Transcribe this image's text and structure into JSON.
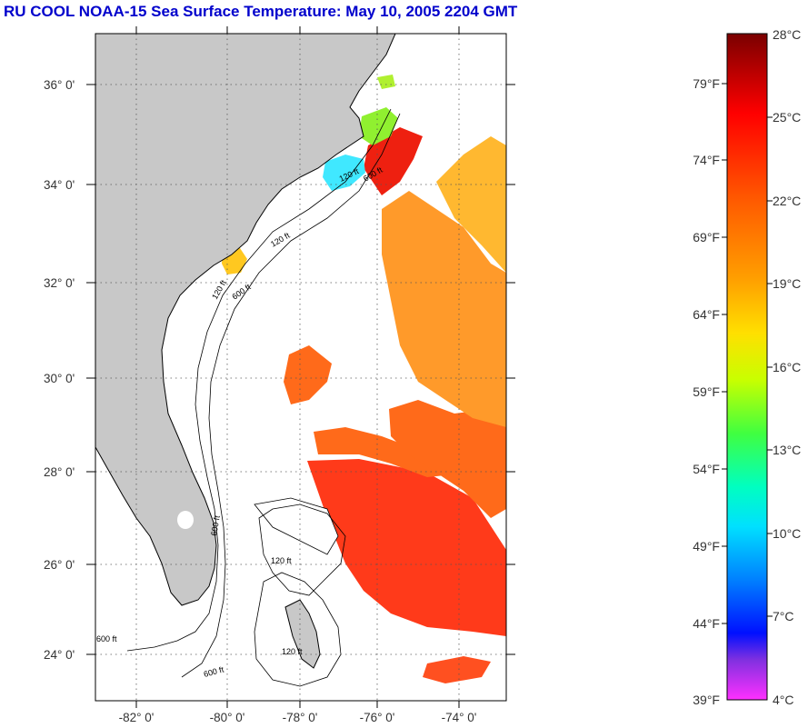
{
  "title": "RU COOL  NOAA-15  Sea Surface Temperature:  May 10, 2005 2204 GMT",
  "lat_labels": [
    "36° 0'",
    "34° 0'",
    "32° 0'",
    "30° 0'",
    "28° 0'",
    "26° 0'",
    "24° 0'"
  ],
  "lon_labels": [
    "-82° 0'",
    "-80° 0'",
    "-78° 0'",
    "-76° 0'",
    "-74° 0'"
  ],
  "colorbar": {
    "celsius": [
      "28°C",
      "25°C",
      "22°C",
      "19°C",
      "16°C",
      "13°C",
      "10°C",
      "7°C",
      "4°C"
    ],
    "fahrenheit": [
      "79°F",
      "74°F",
      "69°F",
      "64°F",
      "59°F",
      "54°F",
      "49°F",
      "44°F",
      "39°F"
    ]
  },
  "contour_labels": [
    "120 ft",
    "600 ft",
    "120 ft",
    "600 ft",
    "120 ft",
    "600 ft",
    "120 ft",
    "600 ft",
    "600 ft",
    "120 ft"
  ],
  "colors": {
    "land": "#c8c8c8",
    "grid": "#555555",
    "title": "#0000cc",
    "sst_warm": "#ff3a1a",
    "sst_mid": "#ff7a1a",
    "sst_cool": "#ffb020"
  }
}
